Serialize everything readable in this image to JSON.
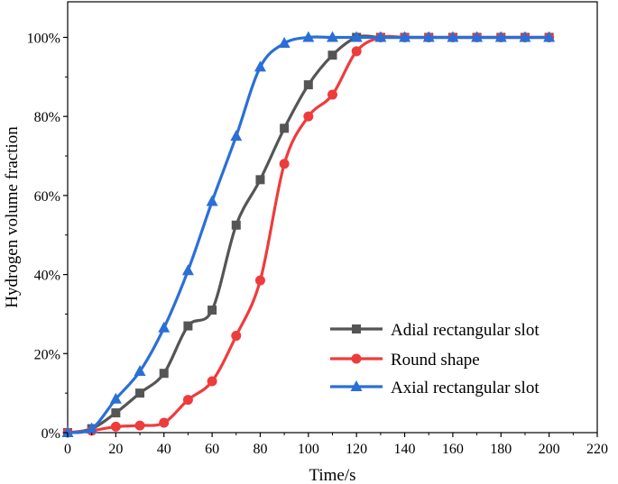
{
  "chart_data": {
    "type": "line",
    "xlabel": "Time/s",
    "ylabel": "Hydrogen volume fraction",
    "xlim": [
      0,
      220
    ],
    "ylim": [
      0,
      1.09
    ],
    "x_ticks": [
      0,
      20,
      40,
      60,
      80,
      100,
      120,
      140,
      160,
      180,
      200,
      220
    ],
    "y_ticks": [
      0,
      0.2,
      0.4,
      0.6,
      0.8,
      1.0
    ],
    "y_tick_labels": [
      "0%",
      "20%",
      "40%",
      "60%",
      "80%",
      "100%"
    ],
    "grid": false,
    "legend_position": "bottom-right",
    "x": [
      0,
      10,
      20,
      30,
      40,
      50,
      60,
      70,
      80,
      90,
      100,
      110,
      120,
      130,
      140,
      150,
      160,
      170,
      180,
      190,
      200
    ],
    "series": [
      {
        "name": "Adial rectangular slot",
        "color": "#555555",
        "marker": "square",
        "values": [
          0,
          0.01,
          0.05,
          0.1,
          0.15,
          0.27,
          0.31,
          0.525,
          0.64,
          0.77,
          0.88,
          0.955,
          1.0,
          1.0,
          1.0,
          1.0,
          1.0,
          1.0,
          1.0,
          1.0,
          1.0
        ]
      },
      {
        "name": "Round shape",
        "color": "#ee3c3c",
        "marker": "circle",
        "values": [
          0,
          0.005,
          0.015,
          0.018,
          0.025,
          0.083,
          0.13,
          0.245,
          0.385,
          0.68,
          0.8,
          0.855,
          0.965,
          1.0,
          1.0,
          1.0,
          1.0,
          1.0,
          1.0,
          1.0,
          1.0
        ]
      },
      {
        "name": "Axial rectangular slot",
        "color": "#2b6fd6",
        "marker": "triangle",
        "values": [
          0,
          0.01,
          0.085,
          0.155,
          0.265,
          0.41,
          0.585,
          0.75,
          0.925,
          0.985,
          1.0,
          1.0,
          1.0,
          1.0,
          1.0,
          1.0,
          1.0,
          1.0,
          1.0,
          1.0,
          1.0
        ]
      }
    ]
  }
}
